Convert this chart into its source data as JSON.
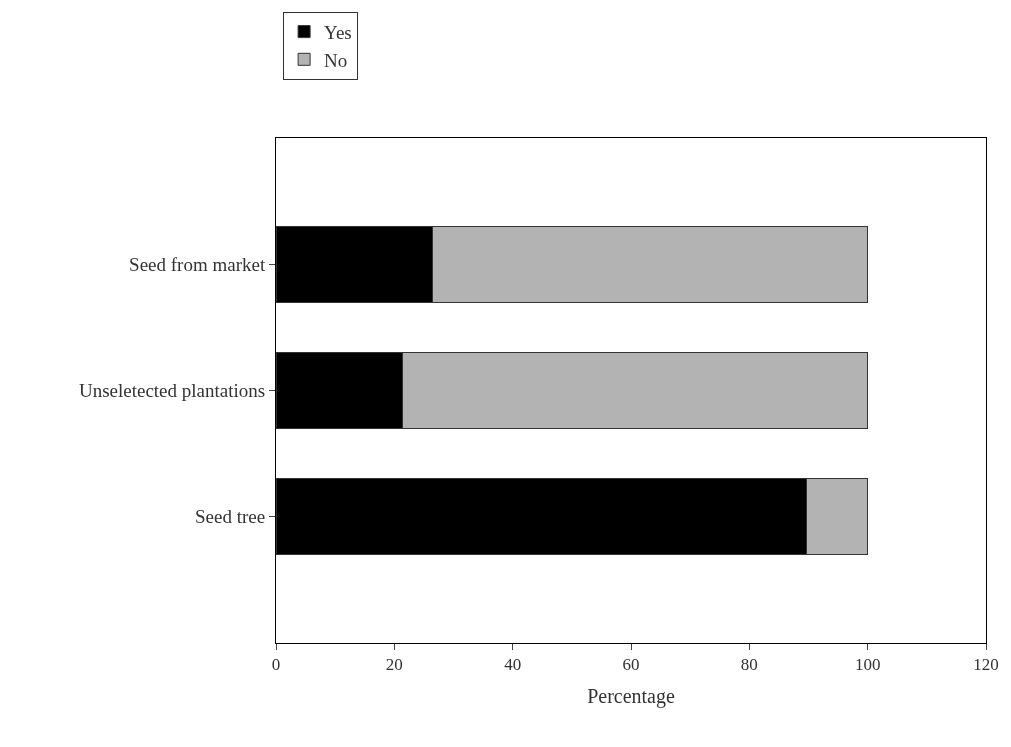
{
  "chart_data": {
    "type": "bar",
    "orientation": "horizontal",
    "stacked": true,
    "categories": [
      "Seed from market",
      "Unseletected plantations",
      "Seed tree"
    ],
    "series": [
      {
        "name": "Yes",
        "color": "#000000",
        "values": [
          26.5,
          21.3,
          89.7
        ]
      },
      {
        "name": "No",
        "color": "#b3b3b3",
        "values": [
          73.5,
          78.7,
          10.3
        ]
      }
    ],
    "xlabel": "Percentage",
    "xlim": [
      0,
      120
    ],
    "xticks": [
      0,
      20,
      40,
      60,
      80,
      100,
      120
    ],
    "legend": "top left"
  }
}
